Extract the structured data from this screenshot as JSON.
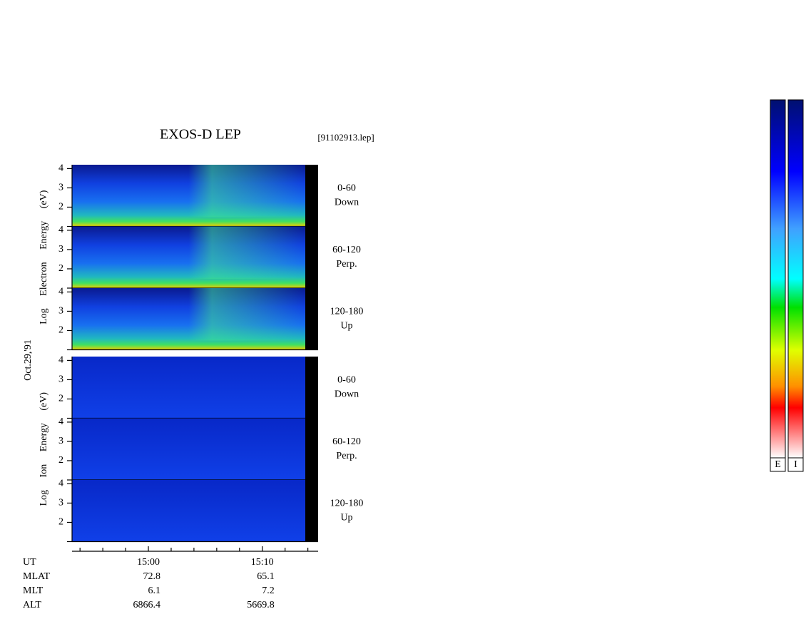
{
  "chart_data": {
    "type": "spectrogram",
    "title": "EXOS-D LEP",
    "file": "[91102913.lep]",
    "date": "Oct.29,'91",
    "groups": [
      {
        "axis_label": "Log Electron Energy (eV)",
        "panels": [
          {
            "pitch": "0-60",
            "direction": "Down"
          },
          {
            "pitch": "60-120",
            "direction": "Perp."
          },
          {
            "pitch": "120-180",
            "direction": "Up"
          }
        ]
      },
      {
        "axis_label": "Log Ion Energy (eV)",
        "panels": [
          {
            "pitch": "0-60",
            "direction": "Down"
          },
          {
            "pitch": "60-120",
            "direction": "Perp."
          },
          {
            "pitch": "120-180",
            "direction": "Up"
          }
        ]
      }
    ],
    "ylim": [
      1,
      4.2
    ],
    "yticks": [
      2,
      3,
      4
    ],
    "xlim": [
      893.3,
      914.9
    ],
    "xticks": [
      {
        "value": 900,
        "label": "15:00"
      },
      {
        "value": 910,
        "label": "15:10"
      }
    ],
    "xminor": [
      894,
      896,
      898,
      902,
      904,
      906,
      908,
      912,
      914
    ],
    "ephemeris": {
      "labels": [
        "UT",
        "MLAT",
        "MLT",
        "ALT"
      ],
      "rows": [
        [
          72.8,
          65.1
        ],
        [
          6.1,
          7.2
        ],
        [
          6866.4,
          5669.8
        ]
      ]
    },
    "colorbars": [
      "E",
      "I"
    ]
  }
}
